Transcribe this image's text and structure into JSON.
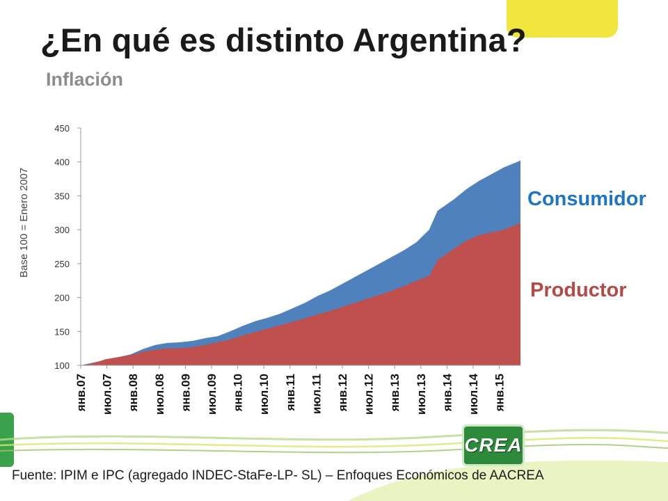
{
  "slide": {
    "title": "¿En qué es distinto Argentina?",
    "subtitle": "Inflación",
    "source": "Fuente: IPIM e IPC (agregado INDEC-StaFe-LP- SL) – Enfoques Económicos de AACREA",
    "logo_text": "CREA"
  },
  "colors": {
    "consumidor": "#4f81bd",
    "productor": "#c0504d",
    "consumidor_label": "#1f75c4",
    "productor_label": "#b44a46",
    "accent_yellow": "#f0e53c",
    "accent_green": "#3aa24a"
  },
  "chart_data": {
    "type": "area",
    "ylabel": "Base 100 = Enero 2007",
    "ylim": [
      100,
      450
    ],
    "yticks": [
      100,
      150,
      200,
      250,
      300,
      350,
      400,
      450
    ],
    "x_tick_labels": [
      "янв.07",
      "июл.07",
      "янв.08",
      "июл.08",
      "янв.09",
      "июл.09",
      "янв.10",
      "июл.10",
      "янв.11",
      "июл.11",
      "янв.12",
      "июл.12",
      "янв.13",
      "июл.13",
      "янв.14",
      "июл.14",
      "янв.15"
    ],
    "x_range": [
      "2007-01",
      "2015-11"
    ],
    "grid": false,
    "series": [
      {
        "name": "Consumidor",
        "points": [
          [
            "2007-01",
            100
          ],
          [
            "2007-04",
            104
          ],
          [
            "2007-07",
            108
          ],
          [
            "2007-10",
            112
          ],
          [
            "2008-01",
            116
          ],
          [
            "2008-04",
            124
          ],
          [
            "2008-07",
            130
          ],
          [
            "2008-10",
            133
          ],
          [
            "2009-01",
            134
          ],
          [
            "2009-04",
            136
          ],
          [
            "2009-07",
            140
          ],
          [
            "2009-10",
            143
          ],
          [
            "2010-01",
            150
          ],
          [
            "2010-04",
            158
          ],
          [
            "2010-07",
            165
          ],
          [
            "2010-10",
            170
          ],
          [
            "2011-01",
            176
          ],
          [
            "2011-04",
            184
          ],
          [
            "2011-07",
            192
          ],
          [
            "2011-10",
            202
          ],
          [
            "2012-01",
            210
          ],
          [
            "2012-04",
            220
          ],
          [
            "2012-07",
            230
          ],
          [
            "2012-10",
            240
          ],
          [
            "2013-01",
            250
          ],
          [
            "2013-04",
            260
          ],
          [
            "2013-07",
            270
          ],
          [
            "2013-10",
            282
          ],
          [
            "2014-01",
            300
          ],
          [
            "2014-03",
            328
          ],
          [
            "2014-07",
            345
          ],
          [
            "2014-10",
            360
          ],
          [
            "2015-01",
            372
          ],
          [
            "2015-04",
            382
          ],
          [
            "2015-07",
            392
          ],
          [
            "2015-11",
            402
          ]
        ]
      },
      {
        "name": "Productor",
        "points": [
          [
            "2007-01",
            100
          ],
          [
            "2007-04",
            103
          ],
          [
            "2007-07",
            109
          ],
          [
            "2007-10",
            112
          ],
          [
            "2008-01",
            115
          ],
          [
            "2008-04",
            120
          ],
          [
            "2008-07",
            123
          ],
          [
            "2008-10",
            125
          ],
          [
            "2009-01",
            125
          ],
          [
            "2009-04",
            127
          ],
          [
            "2009-07",
            130
          ],
          [
            "2009-10",
            134
          ],
          [
            "2010-01",
            138
          ],
          [
            "2010-04",
            144
          ],
          [
            "2010-07",
            149
          ],
          [
            "2010-10",
            154
          ],
          [
            "2011-01",
            159
          ],
          [
            "2011-04",
            164
          ],
          [
            "2011-07",
            169
          ],
          [
            "2011-10",
            175
          ],
          [
            "2012-01",
            180
          ],
          [
            "2012-04",
            186
          ],
          [
            "2012-07",
            192
          ],
          [
            "2012-10",
            198
          ],
          [
            "2013-01",
            204
          ],
          [
            "2013-04",
            210
          ],
          [
            "2013-07",
            217
          ],
          [
            "2013-10",
            225
          ],
          [
            "2014-01",
            232
          ],
          [
            "2014-03",
            255
          ],
          [
            "2014-07",
            272
          ],
          [
            "2014-10",
            284
          ],
          [
            "2015-01",
            292
          ],
          [
            "2015-04",
            296
          ],
          [
            "2015-07",
            300
          ],
          [
            "2015-11",
            310
          ]
        ]
      }
    ]
  }
}
